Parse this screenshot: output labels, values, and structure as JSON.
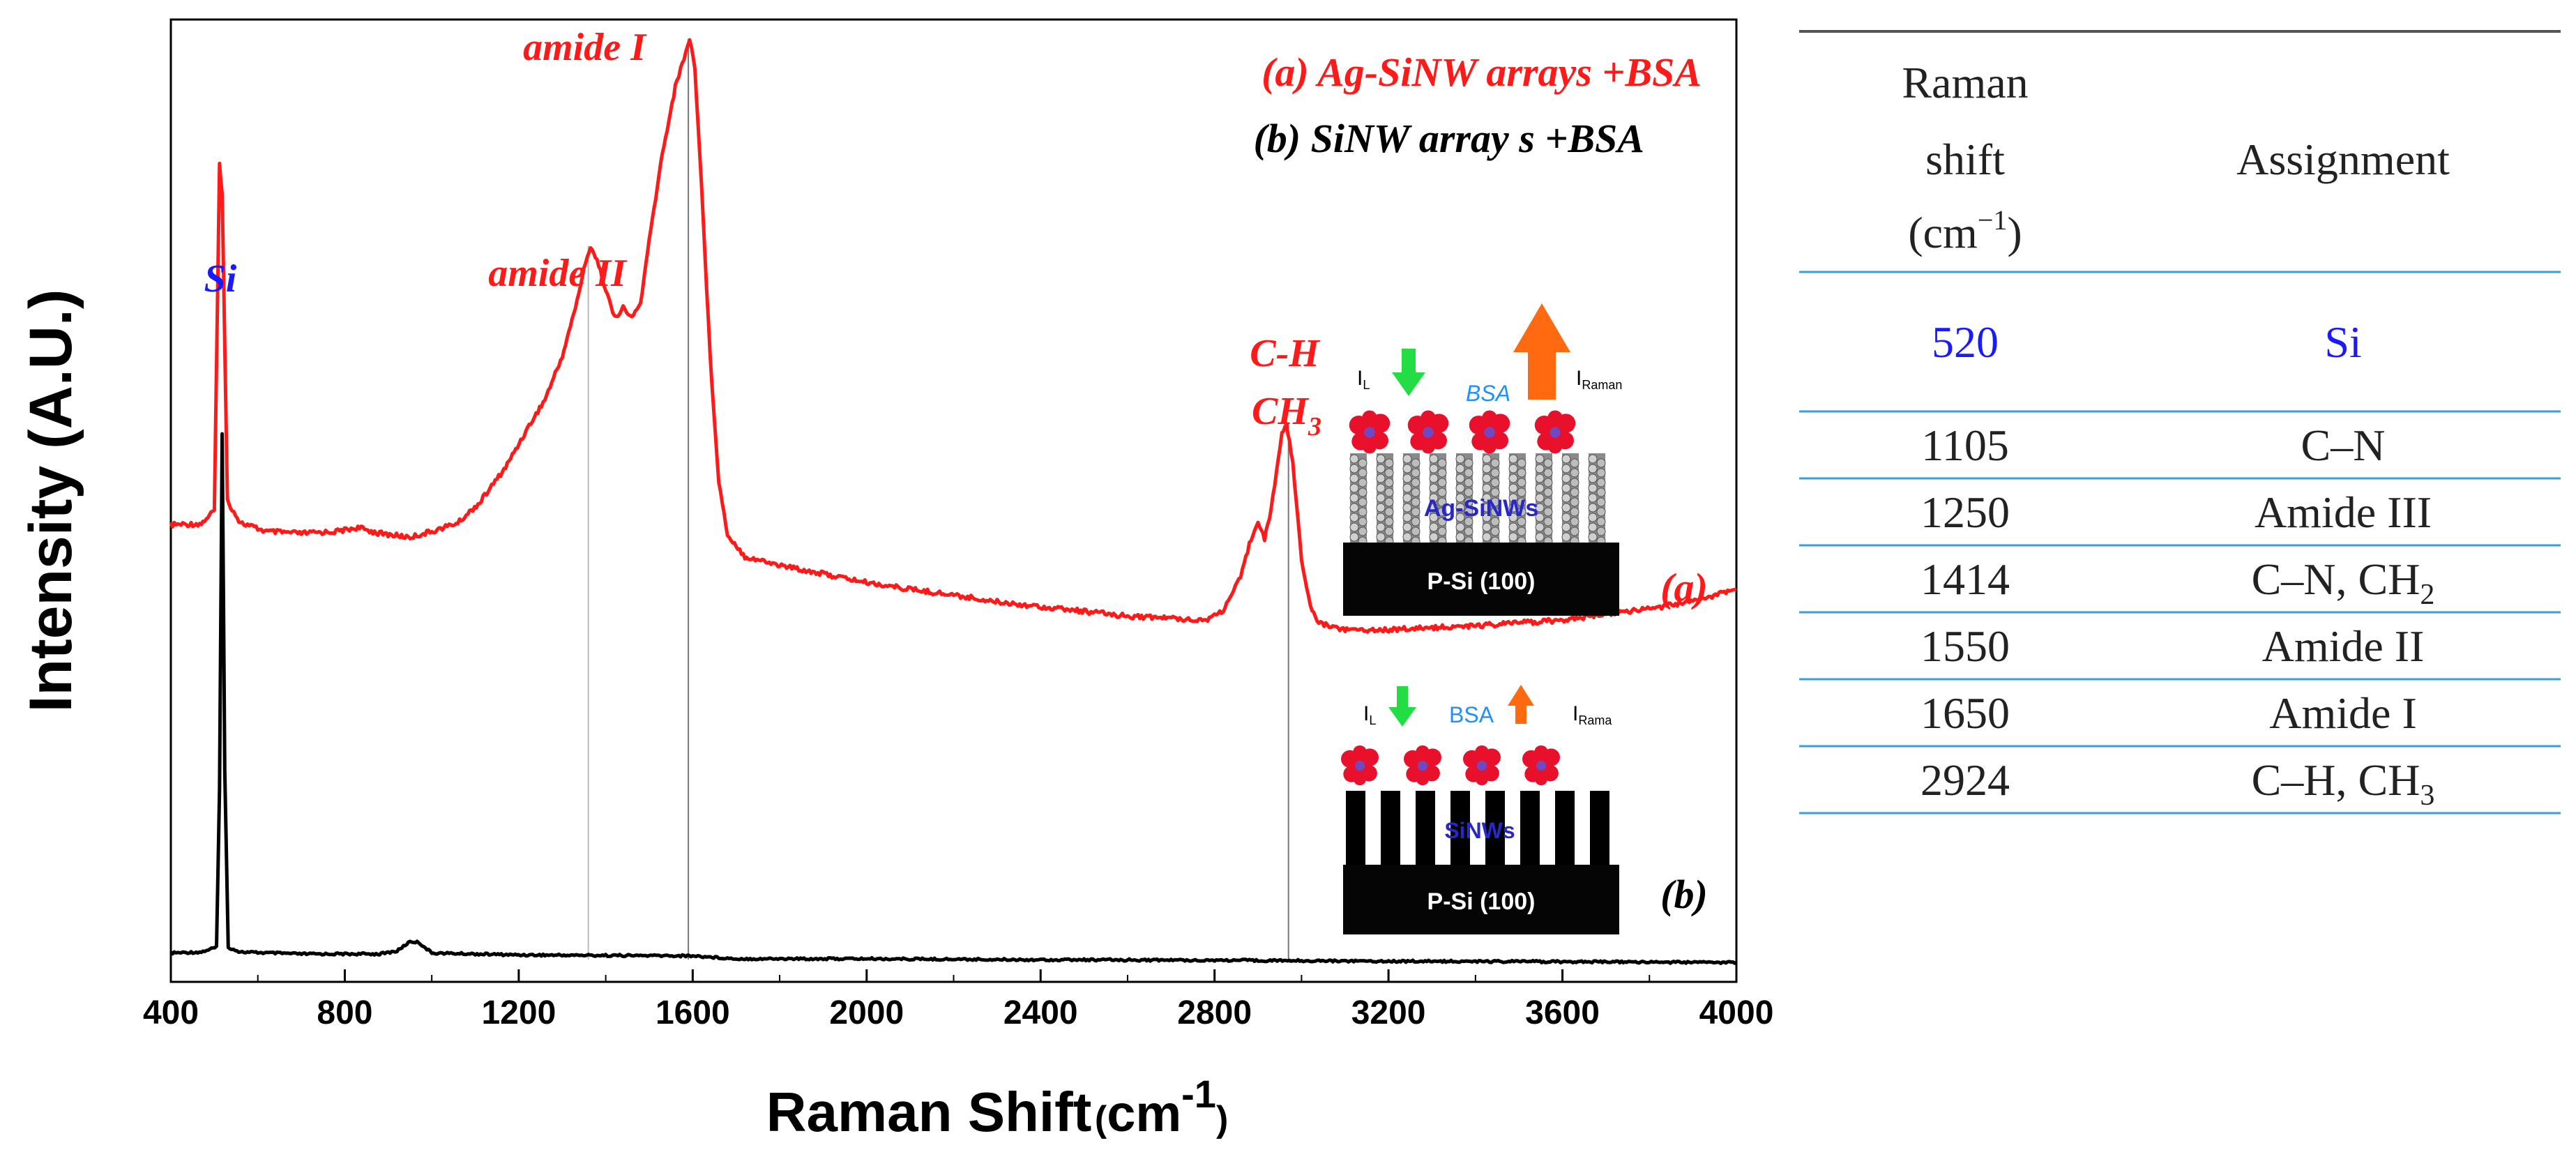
{
  "chart_data": {
    "type": "line",
    "xlabel": "Raman Shift",
    "xlabel_unit_base": "cm",
    "xlabel_unit_exp": "-1",
    "ylabel": "Intensity (A.U.)",
    "xlim": [
      400,
      4000
    ],
    "ylim": [
      0,
      100
    ],
    "x_ticks": [
      400,
      800,
      1200,
      1600,
      2000,
      2400,
      2800,
      3200,
      3600,
      4000
    ],
    "legend": {
      "a": "(a) Ag-SiNW arrays +BSA",
      "b": "(b) SiNW array s +BSA"
    },
    "curve_labels": {
      "a": "(a)",
      "b": "(b)"
    },
    "peak_labels": {
      "si": "Si",
      "amide_one": "amide I",
      "amide_two": "amide II",
      "ch": "C-H",
      "ch3_base": "CH",
      "ch3_sub": "3"
    },
    "colors": {
      "a": "#ff1a1a",
      "b": "#000000",
      "si_label": "#1a1aff",
      "bsa": "#1e90ff"
    },
    "series": [
      {
        "name": "(a) Ag-SiNW arrays +BSA",
        "points": [
          [
            400,
            47.5
          ],
          [
            470,
            47.6
          ],
          [
            500,
            49
          ],
          [
            512,
            85
          ],
          [
            518,
            82
          ],
          [
            530,
            50
          ],
          [
            560,
            47.7
          ],
          [
            620,
            46.8
          ],
          [
            700,
            46.6
          ],
          [
            780,
            46.8
          ],
          [
            830,
            47.2
          ],
          [
            880,
            46.6
          ],
          [
            950,
            46.2
          ],
          [
            1000,
            46.8
          ],
          [
            1060,
            47.7
          ],
          [
            1110,
            49.8
          ],
          [
            1170,
            53.5
          ],
          [
            1220,
            57.5
          ],
          [
            1260,
            60.5
          ],
          [
            1300,
            65
          ],
          [
            1330,
            70
          ],
          [
            1350,
            74
          ],
          [
            1365,
            76.5
          ],
          [
            1380,
            75
          ],
          [
            1400,
            72
          ],
          [
            1420,
            69
          ],
          [
            1440,
            70
          ],
          [
            1460,
            69
          ],
          [
            1480,
            70.5
          ],
          [
            1500,
            77
          ],
          [
            1530,
            86
          ],
          [
            1560,
            93
          ],
          [
            1580,
            96
          ],
          [
            1593,
            98
          ],
          [
            1605,
            95
          ],
          [
            1620,
            83
          ],
          [
            1640,
            65
          ],
          [
            1660,
            52
          ],
          [
            1680,
            46.5
          ],
          [
            1720,
            44.2
          ],
          [
            1800,
            43.3
          ],
          [
            1900,
            42.4
          ],
          [
            2000,
            41.5
          ],
          [
            2100,
            40.8
          ],
          [
            2200,
            40.2
          ],
          [
            2300,
            39.5
          ],
          [
            2400,
            39
          ],
          [
            2500,
            38.5
          ],
          [
            2600,
            38
          ],
          [
            2700,
            37.8
          ],
          [
            2780,
            37.6
          ],
          [
            2820,
            38.6
          ],
          [
            2860,
            42
          ],
          [
            2880,
            45.5
          ],
          [
            2900,
            48
          ],
          [
            2915,
            46
          ],
          [
            2930,
            49
          ],
          [
            2955,
            57
          ],
          [
            2965,
            58
          ],
          [
            2980,
            54
          ],
          [
            3000,
            44
          ],
          [
            3020,
            39
          ],
          [
            3040,
            37.3
          ],
          [
            3100,
            36.6
          ],
          [
            3200,
            36.6
          ],
          [
            3300,
            36.8
          ],
          [
            3400,
            37
          ],
          [
            3500,
            37.3
          ],
          [
            3600,
            37.6
          ],
          [
            3700,
            38.2
          ],
          [
            3800,
            38.8
          ],
          [
            3900,
            39.5
          ],
          [
            4000,
            40.8
          ]
        ]
      },
      {
        "name": "(b) SiNW array s +BSA",
        "points": [
          [
            400,
            3
          ],
          [
            470,
            3.1
          ],
          [
            505,
            3.6
          ],
          [
            512,
            20
          ],
          [
            518,
            57
          ],
          [
            524,
            22
          ],
          [
            532,
            3.6
          ],
          [
            560,
            3.1
          ],
          [
            700,
            2.9
          ],
          [
            880,
            2.9
          ],
          [
            920,
            3.2
          ],
          [
            950,
            4.2
          ],
          [
            970,
            4.1
          ],
          [
            1000,
            3
          ],
          [
            1200,
            2.8
          ],
          [
            1600,
            2.7
          ],
          [
            1700,
            2.4
          ],
          [
            2000,
            2.4
          ],
          [
            2400,
            2.3
          ],
          [
            2800,
            2.25
          ],
          [
            3200,
            2.15
          ],
          [
            3600,
            2.1
          ],
          [
            4000,
            2
          ]
        ]
      }
    ],
    "marker_lines": [
      1360,
      1590,
      2970
    ]
  },
  "inset_a": {
    "il": "I",
    "il_sub": "L",
    "bsa": "BSA",
    "iraman": "I",
    "iraman_sub": "Raman",
    "wires": "Ag-SiNWs",
    "substrate": "P-Si (100)"
  },
  "inset_b": {
    "il": "I",
    "il_sub": "L",
    "bsa": "BSA",
    "iraman": "I",
    "iraman_sub": "Rama",
    "wires": "SiNWs",
    "substrate": "P-Si (100)"
  },
  "table": {
    "header_shift_1": "Raman",
    "header_shift_2": "shift",
    "header_shift_3_base": "(cm",
    "header_shift_3_exp": "−1",
    "header_shift_3_end": ")",
    "header_assignment": "Assignment",
    "rows": [
      {
        "shift": "520",
        "assignment": "Si",
        "assignment_sub": ""
      },
      {
        "shift": "1105",
        "assignment": "C–N",
        "assignment_sub": ""
      },
      {
        "shift": "1250",
        "assignment": "Amide III",
        "assignment_sub": ""
      },
      {
        "shift": "1414",
        "assignment": "C–N, CH",
        "assignment_sub": "2"
      },
      {
        "shift": "1550",
        "assignment": "Amide II",
        "assignment_sub": ""
      },
      {
        "shift": "1650",
        "assignment": "Amide I",
        "assignment_sub": ""
      },
      {
        "shift": "2924",
        "assignment": "C–H, CH",
        "assignment_sub": "3"
      }
    ],
    "colors": {
      "highlight": "#1a1aff",
      "rule": "#3a9fd6",
      "top_rule": "#555555"
    }
  }
}
